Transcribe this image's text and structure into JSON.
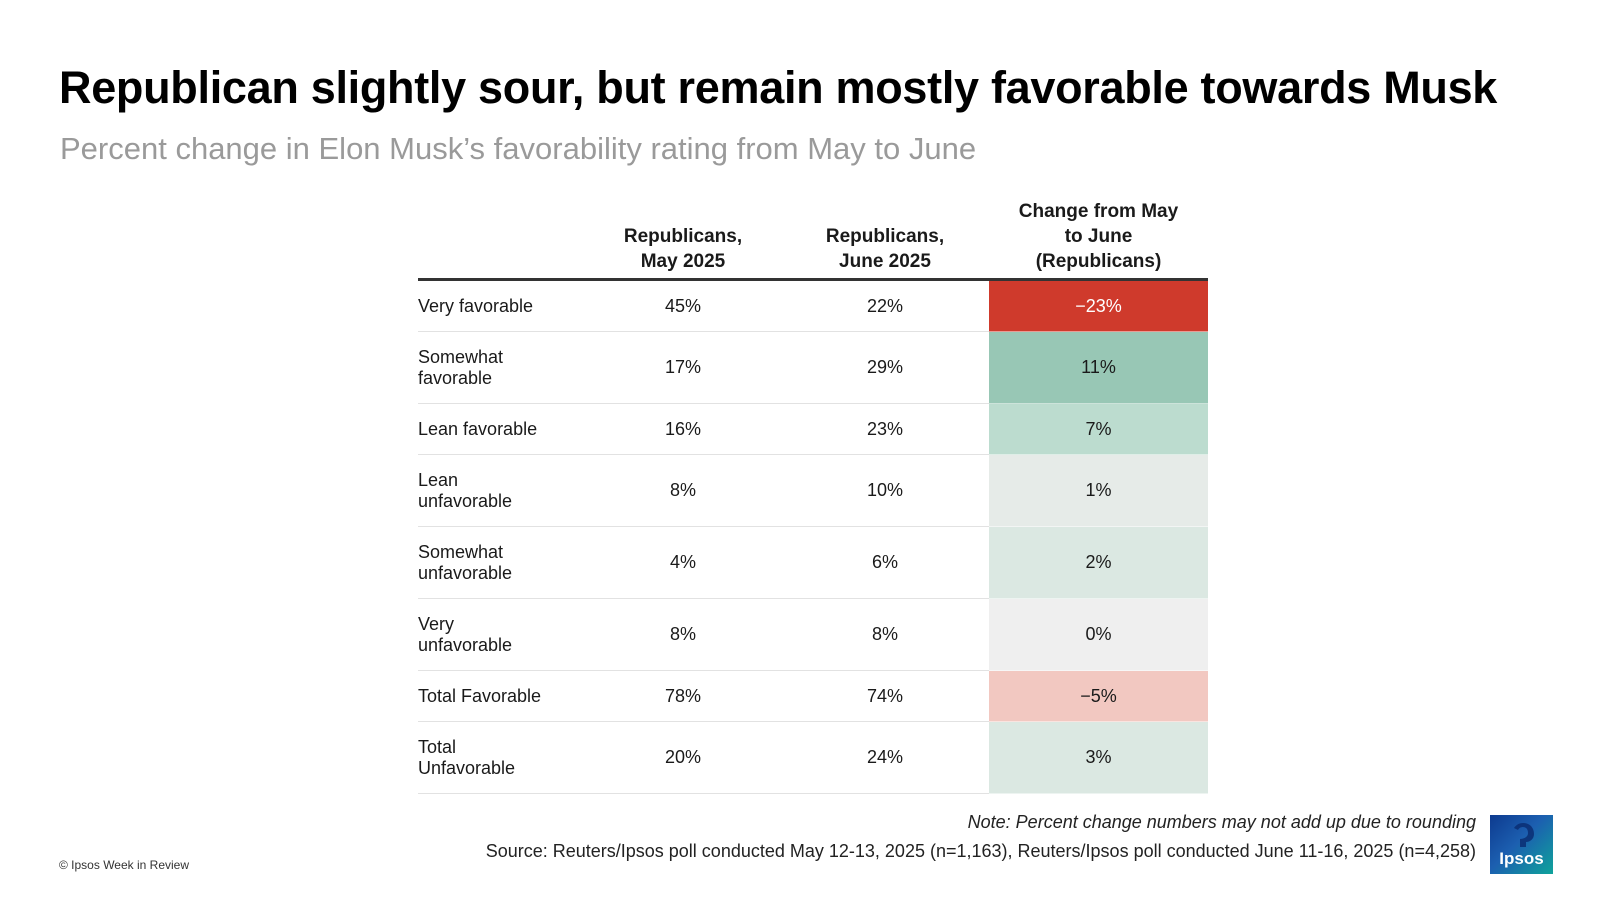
{
  "title": "Republican slightly sour, but remain mostly favorable towards Musk",
  "subtitle": "Percent change in Elon Musk’s favorability rating from May to June",
  "chart_data": {
    "type": "table",
    "columns": [
      "",
      "Republicans,\nMay 2025",
      "Republicans,\nJune 2025",
      "Change from May\nto June\n(Republicans)"
    ],
    "rows": [
      {
        "label": "Very favorable",
        "may": "45%",
        "june": "22%",
        "change": "−23%",
        "change_value": -23
      },
      {
        "label": "Somewhat\nfavorable",
        "may": "17%",
        "june": "29%",
        "change": "11%",
        "change_value": 11
      },
      {
        "label": "Lean favorable",
        "may": "16%",
        "june": "23%",
        "change": "7%",
        "change_value": 7
      },
      {
        "label": "Lean\nunfavorable",
        "may": "8%",
        "june": "10%",
        "change": "1%",
        "change_value": 1
      },
      {
        "label": "Somewhat\nunfavorable",
        "may": "4%",
        "june": "6%",
        "change": "2%",
        "change_value": 2
      },
      {
        "label": "Very\nunfavorable",
        "may": "8%",
        "june": "8%",
        "change": "0%",
        "change_value": 0
      },
      {
        "label": "Total Favorable",
        "may": "78%",
        "june": "74%",
        "change": "−5%",
        "change_value": -5
      },
      {
        "label": "Total\nUnfavorable",
        "may": "20%",
        "june": "24%",
        "change": "3%",
        "change_value": 3
      }
    ],
    "change_colors": [
      "#cf3a2c",
      "#98c7b5",
      "#bcdccf",
      "#e6ebe8",
      "#dbe8e2",
      "#efefef",
      "#f2c8c1",
      "#dbe8e2"
    ],
    "change_text_colors": [
      "#ffffff",
      "#1a1a1a",
      "#1a1a1a",
      "#1a1a1a",
      "#1a1a1a",
      "#1a1a1a",
      "#1a1a1a",
      "#1a1a1a"
    ]
  },
  "note": "Note: Percent change numbers may not add up due to rounding",
  "source": "Source: Reuters/Ipsos poll conducted May 12-13, 2025 (n=1,163), Reuters/Ipsos poll conducted June 11-16, 2025 (n=4,258)",
  "copyright": "© Ipsos Week in Review",
  "logo": {
    "text": "Ipsos",
    "icon": "ipsos-logo-icon"
  }
}
